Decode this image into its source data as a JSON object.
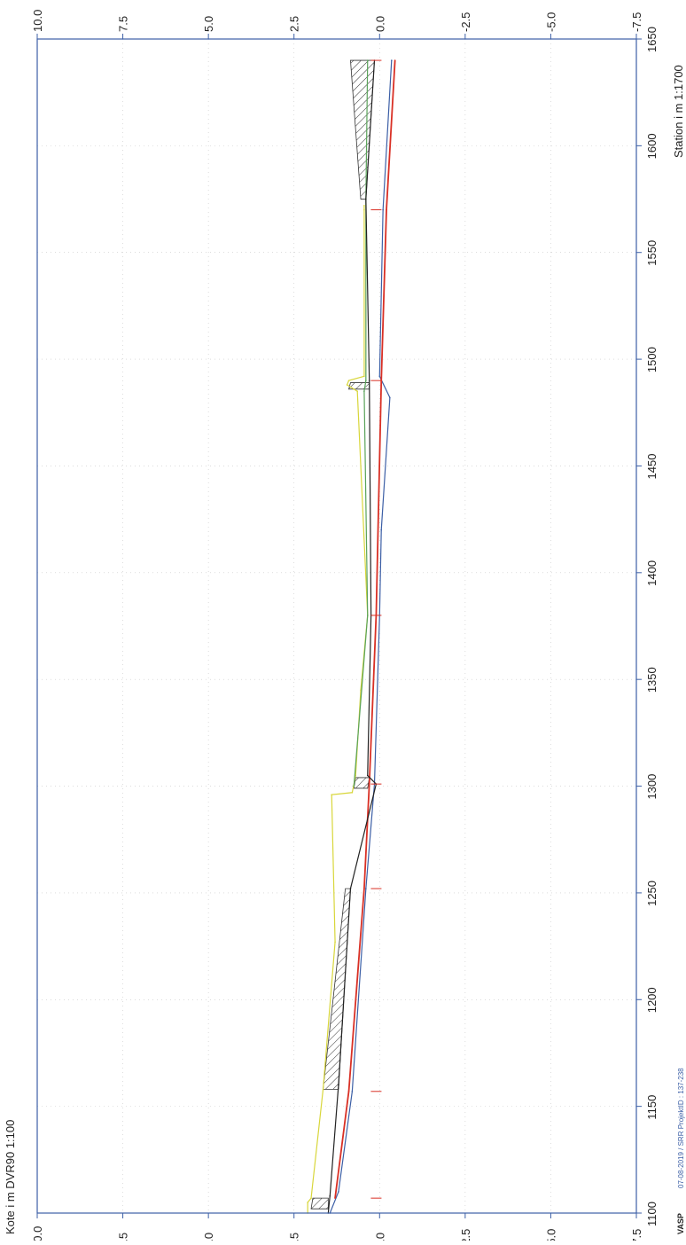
{
  "labels": {
    "y_axis": "Kote i m DVR90 1:100",
    "x_axis": "Station i m  1:1700",
    "logo": "VASP",
    "footer": "07-08-2019 / SRR   ProjektID : 137-238"
  },
  "colors": {
    "terrain": "#d8d63a",
    "green_line": "#5aa35a",
    "blue_line": "#3c5fa6",
    "red_line": "#d93025",
    "black_line": "#222222",
    "axis": "#3c5fa6",
    "grid": "#c8c8c8"
  },
  "chart_data": {
    "type": "line",
    "orientation": "rotated-90-ccw",
    "xlabel": "Station i m  1:1700",
    "ylabel": "Kote i m DVR90 1:100",
    "xlim": [
      1100,
      1650
    ],
    "ylim": [
      -7.5,
      10.0
    ],
    "x_ticks": [
      "1100",
      "1150",
      "1200",
      "1250",
      "1300",
      "1350",
      "1400",
      "1450",
      "1500",
      "1550",
      "1600",
      "1650"
    ],
    "y_ticks": [
      "10.0",
      "7.5",
      "5.0",
      "2.5",
      "0.0",
      "-2.5",
      "-5.0",
      "-7.5"
    ],
    "grid": true,
    "series": [
      {
        "key": "terrain",
        "points": [
          [
            1100,
            2.1
          ],
          [
            1105,
            2.1
          ],
          [
            1107,
            2.0
          ],
          [
            1158,
            1.65
          ],
          [
            1227,
            1.3
          ],
          [
            1296,
            1.4
          ],
          [
            1297,
            0.8
          ],
          [
            1305,
            0.7
          ],
          [
            1345,
            0.55
          ],
          [
            1380,
            0.35
          ],
          [
            1485,
            0.65
          ],
          [
            1488,
            0.95
          ],
          [
            1490,
            0.9
          ],
          [
            1492,
            0.45
          ],
          [
            1570,
            0.45
          ],
          [
            1572,
            0.45
          ]
        ]
      },
      {
        "key": "green_line",
        "points": [
          [
            1300,
            0.75
          ],
          [
            1380,
            0.35
          ],
          [
            1485,
            0.45
          ],
          [
            1490,
            0.4
          ],
          [
            1575,
            0.4
          ],
          [
            1640,
            0.35
          ]
        ]
      },
      {
        "key": "blue_line",
        "points": [
          [
            1100,
            1.45
          ],
          [
            1110,
            1.2
          ],
          [
            1157,
            0.8
          ],
          [
            1252,
            0.4
          ],
          [
            1301,
            0.15
          ],
          [
            1380,
            0.0
          ],
          [
            1420,
            -0.05
          ],
          [
            1482,
            -0.3
          ],
          [
            1492,
            0.0
          ],
          [
            1570,
            -0.1
          ],
          [
            1640,
            -0.35
          ]
        ]
      },
      {
        "key": "red_line",
        "points": [
          [
            1107,
            1.3
          ],
          [
            1157,
            0.9
          ],
          [
            1252,
            0.45
          ],
          [
            1301,
            0.3
          ],
          [
            1380,
            0.1
          ],
          [
            1490,
            -0.05
          ],
          [
            1570,
            -0.2
          ],
          [
            1640,
            -0.45
          ]
        ]
      },
      {
        "key": "black_line",
        "points": [
          [
            1100,
            1.5
          ],
          [
            1108,
            1.45
          ],
          [
            1160,
            1.2
          ],
          [
            1252,
            0.85
          ],
          [
            1301,
            0.1
          ],
          [
            1305,
            0.35
          ],
          [
            1380,
            0.25
          ],
          [
            1490,
            0.3
          ],
          [
            1575,
            0.4
          ],
          [
            1640,
            0.15
          ]
        ]
      }
    ],
    "hatched_sections": [
      {
        "x": [
          1102,
          1107
        ],
        "top": [
          2.0,
          1.95
        ],
        "bottom": [
          1.5,
          1.5
        ]
      },
      {
        "x": [
          1158,
          1252
        ],
        "top": [
          1.65,
          1.0
        ],
        "bottom": [
          1.2,
          0.85
        ]
      },
      {
        "x": [
          1299,
          1304
        ],
        "top": [
          0.75,
          0.7
        ],
        "bottom": [
          0.35,
          0.3
        ]
      },
      {
        "x": [
          1486,
          1489
        ],
        "top": [
          0.9,
          0.85
        ],
        "bottom": [
          0.3,
          0.3
        ]
      },
      {
        "x": [
          1575,
          1640
        ],
        "top": [
          0.55,
          0.85
        ],
        "bottom": [
          0.4,
          0.15
        ]
      }
    ]
  }
}
